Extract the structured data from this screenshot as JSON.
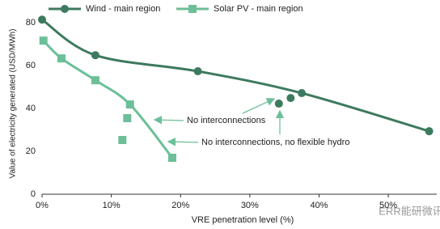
{
  "chart_data": {
    "type": "line",
    "x_label": "VRE penetration level (%)",
    "y_label": "Value of electricity generated (USD/MWh)",
    "xlim": [
      0,
      57
    ],
    "ylim": [
      0,
      85
    ],
    "xticks": [
      {
        "value": 0,
        "label": "0%"
      },
      {
        "value": 10,
        "label": "10%"
      },
      {
        "value": 20,
        "label": "20%"
      },
      {
        "value": 30,
        "label": "30%"
      },
      {
        "value": 40,
        "label": "40%"
      },
      {
        "value": 50,
        "label": "50%"
      }
    ],
    "yticks": [
      0,
      20,
      40,
      60,
      80
    ],
    "grid": false,
    "series": [
      {
        "name": "Wind - main region",
        "color": "#3d7a5e",
        "marker": "circle",
        "x": [
          0,
          7.7,
          22.5,
          37.5,
          55.9
        ],
        "values": [
          81.5,
          64.9,
          57.4,
          47.2,
          29.4
        ],
        "scenarios": {
          "x": [
            34.2,
            35.9
          ],
          "values": [
            42.3,
            44.9
          ]
        }
      },
      {
        "name": "Solar PV - main region",
        "color": "#6cbf98",
        "marker": "square",
        "x": [
          0.2,
          2.8,
          7.7,
          12.7,
          18.8
        ],
        "values": [
          71.7,
          63.4,
          53.2,
          41.9,
          17
        ],
        "scenarios": {
          "x": [
            12.3,
            11.6
          ],
          "values": [
            35.5,
            25.3
          ]
        }
      }
    ],
    "annotations": [
      "No interconnections",
      "No interconnections, no flexible hydro"
    ],
    "watermark": "ERR能研微讯"
  }
}
